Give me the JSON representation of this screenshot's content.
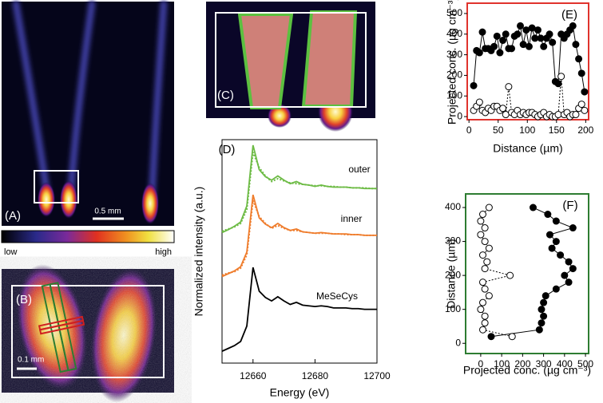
{
  "panels": {
    "A": {
      "label": "(A)",
      "scale_bar": "0.5 mm"
    },
    "colorbar": {
      "low": "low",
      "high": "high"
    },
    "B": {
      "label": "(B)",
      "scale_bar": "0.1 mm"
    },
    "C": {
      "label": "(C)"
    }
  },
  "chart_data": [
    {
      "type": "line",
      "label": "(D)",
      "x_label": "Energy (eV)",
      "y_label": "Normalized intensity (a.u.)",
      "xlim": [
        12650,
        12700
      ],
      "xticks": [
        12660,
        12680,
        12700
      ],
      "ylim": [
        0,
        3.2
      ],
      "x": [
        12650,
        12652,
        12654,
        12656,
        12658,
        12660,
        12662,
        12664,
        12666,
        12668,
        12670,
        12672,
        12674,
        12676,
        12678,
        12680,
        12682,
        12684,
        12686,
        12688,
        12690,
        12692,
        12694,
        12696,
        12698,
        12700
      ],
      "series": [
        {
          "name": "outer",
          "color": "#6dbb45",
          "line_style": "solid",
          "values": [
            1.87,
            1.91,
            1.96,
            2.02,
            2.25,
            3.12,
            2.77,
            2.67,
            2.62,
            2.68,
            2.62,
            2.57,
            2.6,
            2.56,
            2.55,
            2.53,
            2.55,
            2.53,
            2.52,
            2.52,
            2.52,
            2.51,
            2.51,
            2.5,
            2.5,
            2.5
          ]
        },
        {
          "color": "#6dbb45",
          "line_style": "dotted",
          "values": [
            1.89,
            1.92,
            1.95,
            2.0,
            2.2,
            3.02,
            2.8,
            2.68,
            2.6,
            2.64,
            2.61,
            2.58,
            2.57,
            2.56,
            2.55,
            2.54,
            2.54,
            2.53,
            2.53,
            2.52,
            2.52,
            2.51,
            2.51,
            2.51,
            2.5,
            2.5
          ]
        },
        {
          "name": "inner",
          "color": "#ef7d2d",
          "line_style": "solid",
          "values": [
            1.24,
            1.28,
            1.32,
            1.38,
            1.59,
            2.41,
            2.08,
            1.99,
            1.94,
            2.0,
            1.94,
            1.9,
            1.92,
            1.88,
            1.87,
            1.86,
            1.87,
            1.86,
            1.85,
            1.85,
            1.85,
            1.84,
            1.84,
            1.83,
            1.83,
            1.83
          ]
        },
        {
          "color": "#ef7d2d",
          "line_style": "dotted",
          "values": [
            1.26,
            1.29,
            1.31,
            1.36,
            1.55,
            2.33,
            2.1,
            2.0,
            1.93,
            1.97,
            1.93,
            1.9,
            1.9,
            1.88,
            1.87,
            1.86,
            1.86,
            1.86,
            1.85,
            1.85,
            1.84,
            1.84,
            1.84,
            1.83,
            1.83,
            1.83
          ]
        },
        {
          "name": "MeSeCys",
          "color": "#000000",
          "line_style": "solid",
          "values": [
            0.17,
            0.21,
            0.25,
            0.31,
            0.53,
            1.37,
            1.03,
            0.94,
            0.89,
            0.95,
            0.89,
            0.84,
            0.87,
            0.83,
            0.82,
            0.81,
            0.82,
            0.81,
            0.79,
            0.79,
            0.79,
            0.78,
            0.78,
            0.77,
            0.77,
            0.77
          ]
        }
      ]
    },
    {
      "type": "scatter-line",
      "label": "(E)",
      "x_label": "Distance (µm)",
      "y_label": "Projected conc. (µg cm⁻³)",
      "frame_color": "#e0332d",
      "xlim": [
        -3,
        205
      ],
      "xticks": [
        0,
        50,
        100,
        150,
        200
      ],
      "ylim": [
        -15,
        550
      ],
      "yticks": [
        0,
        100,
        200,
        300,
        400,
        500
      ],
      "x": [
        8,
        13,
        18,
        23,
        28,
        33,
        38,
        43,
        48,
        53,
        58,
        63,
        68,
        73,
        78,
        83,
        88,
        93,
        98,
        103,
        108,
        113,
        118,
        123,
        128,
        133,
        138,
        143,
        148,
        153,
        158,
        163,
        168,
        173,
        178,
        183,
        188,
        193,
        198
      ],
      "series": [
        {
          "marker_fill": "#000000",
          "line_style": "solid",
          "values": [
            150,
            320,
            310,
            410,
            330,
            330,
            320,
            340,
            390,
            310,
            370,
            400,
            330,
            330,
            390,
            400,
            440,
            350,
            420,
            340,
            430,
            380,
            420,
            380,
            340,
            380,
            400,
            360,
            170,
            160,
            400,
            380,
            400,
            420,
            440,
            350,
            280,
            210,
            120
          ]
        },
        {
          "marker_fill": "#ffffff",
          "line_style": "dotted",
          "values": [
            30,
            50,
            70,
            30,
            20,
            40,
            30,
            50,
            50,
            30,
            40,
            10,
            145,
            20,
            10,
            30,
            10,
            20,
            10,
            20,
            20,
            10,
            0,
            10,
            20,
            0,
            10,
            0,
            0,
            10,
            195,
            10,
            20,
            0,
            10,
            10,
            40,
            60,
            30
          ]
        }
      ]
    },
    {
      "type": "scatter-line-horizontal",
      "label": "(F)",
      "x_label": "Projected conc. (µg cm⁻³)",
      "y_label": "Distance (µm)",
      "frame_color": "#2e7d32",
      "xlim": [
        -72,
        515
      ],
      "xticks": [
        0,
        100,
        200,
        300,
        400,
        500
      ],
      "ylim": [
        -30,
        440
      ],
      "yticks": [
        0,
        100,
        200,
        300,
        400
      ],
      "y": [
        20,
        40,
        60,
        80,
        100,
        120,
        140,
        160,
        180,
        200,
        220,
        240,
        260,
        280,
        300,
        320,
        340,
        360,
        380,
        400
      ],
      "series": [
        {
          "marker_fill": "#000000",
          "line_style": "solid",
          "values": [
            50,
            280,
            290,
            300,
            290,
            300,
            310,
            360,
            420,
            400,
            440,
            420,
            380,
            340,
            360,
            330,
            440,
            360,
            320,
            250
          ]
        },
        {
          "marker_fill": "#ffffff",
          "line_style": "dotted",
          "values": [
            150,
            10,
            20,
            20,
            0,
            10,
            40,
            20,
            10,
            140,
            20,
            30,
            10,
            40,
            20,
            0,
            20,
            0,
            10,
            40
          ]
        }
      ]
    }
  ]
}
